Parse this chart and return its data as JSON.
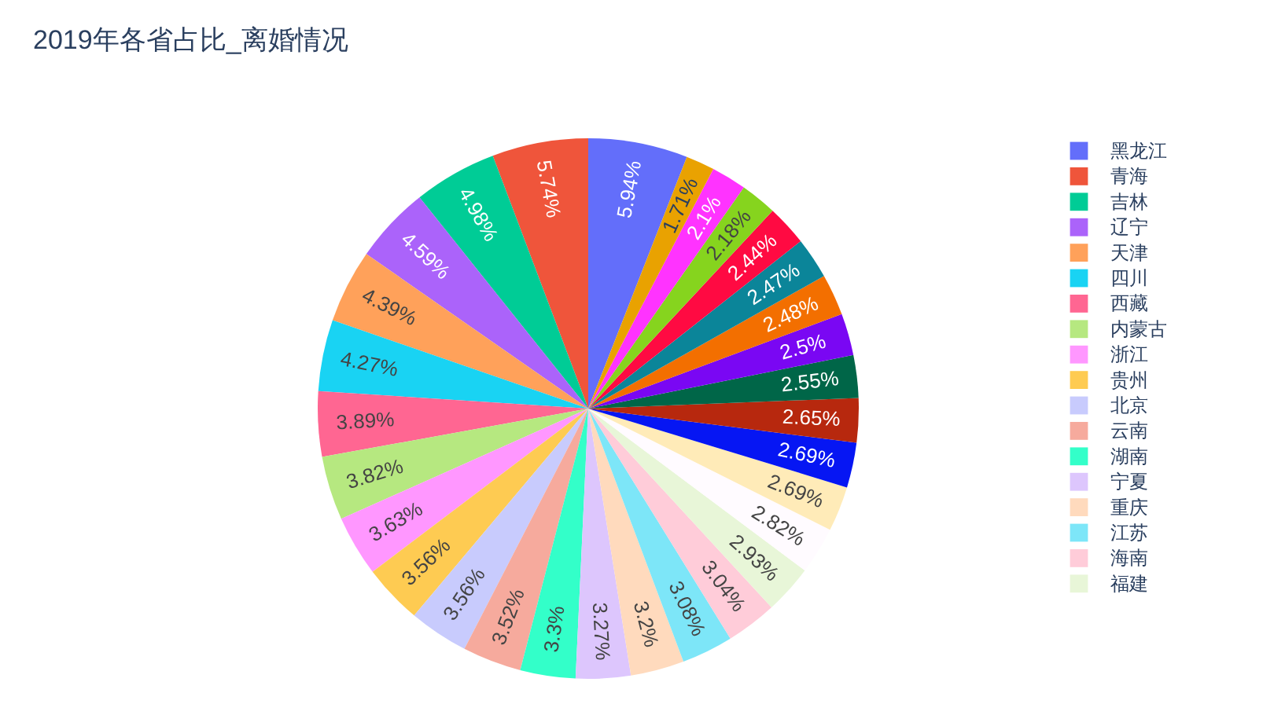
{
  "chart_data": {
    "type": "pie",
    "title": "2019年各省占比_离婚情况",
    "categories": [
      "黑龙江",
      "青海",
      "吉林",
      "辽宁",
      "天津",
      "四川",
      "西藏",
      "内蒙古",
      "浙江",
      "贵州",
      "北京",
      "云南",
      "湖南",
      "宁夏",
      "重庆",
      "江苏",
      "海南",
      "福建",
      null,
      null,
      null,
      null,
      null,
      null,
      null,
      null,
      null,
      null,
      null,
      null
    ],
    "values": [
      5.94,
      5.74,
      4.98,
      4.59,
      4.39,
      4.27,
      3.89,
      3.82,
      3.63,
      3.56,
      3.56,
      3.52,
      3.3,
      3.27,
      3.2,
      3.08,
      3.04,
      2.93,
      2.82,
      2.69,
      2.69,
      2.65,
      2.55,
      2.5,
      2.48,
      2.47,
      2.44,
      2.18,
      2.1,
      1.71
    ],
    "colors": [
      "#636efa",
      "#ef553b",
      "#00cc96",
      "#ab63fa",
      "#ffa15a",
      "#19d3f3",
      "#ff6692",
      "#b6e880",
      "#ff97ff",
      "#fecb52",
      "#c8cbfd",
      "#f6aa9d",
      "#33ffc9",
      "#ddc6fd",
      "#ffdabd",
      "#7de6f8",
      "#ffccd9",
      "#e8f6d8",
      "#fffbff",
      "#ffebb8",
      "#0616f3",
      "#b7280e",
      "#006648",
      "#7a07f3",
      "#f36f00",
      "#0b8599",
      "#ff0a42",
      "#86d41e",
      "#ff33ff",
      "#e9a201"
    ],
    "value_labels": [
      "5.94%",
      "5.74%",
      "4.98%",
      "4.59%",
      "4.39%",
      "4.27%",
      "3.89%",
      "3.82%",
      "3.63%",
      "3.56%",
      "3.56%",
      "3.52%",
      "3.3%",
      "3.27%",
      "3.2%",
      "3.08%",
      "3.04%",
      "2.93%",
      "2.82%",
      "2.69%",
      "2.69%",
      "2.65%",
      "2.55%",
      "2.5%",
      "2.48%",
      "2.47%",
      "2.44%",
      "2.18%",
      "2.1%",
      "1.71%"
    ],
    "legend": "top right"
  }
}
